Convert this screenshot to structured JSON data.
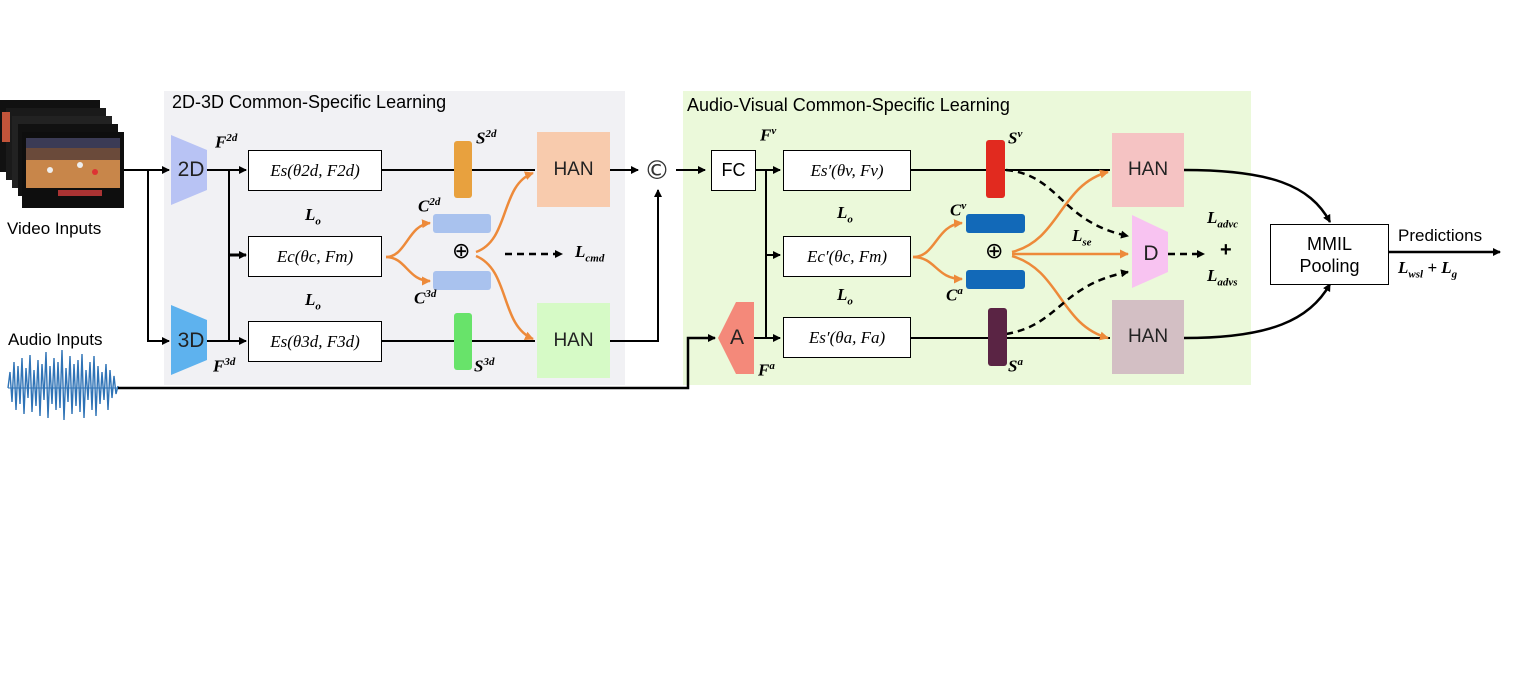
{
  "panels": {
    "left_title": "2D-3D Common-Specific  Learning",
    "right_title": "Audio-Visual  Common-Specific  Learning"
  },
  "inputs": {
    "video": "Video Inputs",
    "audio": "Audio Inputs"
  },
  "extractors": {
    "twod": "2D",
    "threed": "3D",
    "audio": "A",
    "fc": "FC",
    "disc": "D"
  },
  "encoders": {
    "es2d": "Es(θ2d, F2d)",
    "ec_left": "Ec(θc, Fm)",
    "es3d": "Es(θ3d, F3d)",
    "esv": "Es′(θv, Fv)",
    "ec_right": "Ec′(θc, Fm)",
    "esa": "Es′(θa, Fa)"
  },
  "han_label": "HAN",
  "symbols": {
    "concat": "©",
    "plus_circle": "⊕",
    "plus": "+"
  },
  "features": {
    "f2d": "F2d",
    "f3d": "F3d",
    "fv": "Fv",
    "fa": "Fa",
    "s2d": "S3d",
    "c2d": "C2d",
    "c3d": "C3d",
    "sv": "Sv",
    "sa": "Sa",
    "cv": "Cv",
    "ca": "Ca"
  },
  "losses": {
    "lo": "Lo",
    "lcmd": "Lcmd",
    "lse": "Lse",
    "ladvc": "Ladvc",
    "ladvs": "Ladvs",
    "lwsl": "Lwsl",
    "lg": "Lg"
  },
  "pooling": {
    "line1": "MMIL",
    "line2": "Pooling"
  },
  "output": "Predictions",
  "colors": {
    "left_panel": "#f1f1f4",
    "right_panel": "#ebf9da",
    "orange": "#ed8a3a",
    "han_left_top": "#f8cbad",
    "han_left_bottom": "#d6fac6",
    "han_right_top": "#f5c3c3",
    "han_right_bottom": "#d3bfc4",
    "bar_s2d": "#e8a13e",
    "bar_s3d": "#68e36a",
    "bar_c_left": "#a9c2ee",
    "bar_sv": "#e12a1f",
    "bar_sa": "#5a2444",
    "bar_c_right": "#1269b8",
    "extractor_2d": "#b8c3f4",
    "extractor_3d": "#5eb2ee",
    "extractor_a": "#f4897a",
    "extractor_d": "#f8c3f1"
  }
}
